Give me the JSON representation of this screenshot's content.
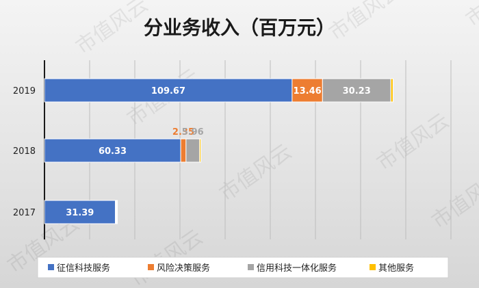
{
  "chart_data": {
    "type": "bar",
    "orientation": "horizontal",
    "stacked": true,
    "title": "分业务收入（百万元）",
    "categories": [
      "2019",
      "2018",
      "2017"
    ],
    "series": [
      {
        "name": "征信科技服务",
        "color": "#4472C4",
        "values": [
          109.67,
          60.33,
          31.39
        ]
      },
      {
        "name": "风险决策服务",
        "color": "#ED7D31",
        "values": [
          13.46,
          2.35,
          0.3
        ]
      },
      {
        "name": "信用科技一体化服务",
        "color": "#A5A5A5",
        "values": [
          30.23,
          5.96,
          0.3
        ]
      },
      {
        "name": "其他服务",
        "color": "#FFC000",
        "values": [
          1.0,
          0.6,
          0.3
        ]
      }
    ],
    "data_labels": [
      {
        "category": "2019",
        "series": "征信科技服务",
        "text": "109.67"
      },
      {
        "category": "2019",
        "series": "风险决策服务",
        "text": "13.46"
      },
      {
        "category": "2019",
        "series": "信用科技一体化服务",
        "text": "30.23"
      },
      {
        "category": "2018",
        "series": "征信科技服务",
        "text": "60.33"
      },
      {
        "category": "2018",
        "series": "风险决策服务",
        "text": "2.35"
      },
      {
        "category": "2018",
        "series": "信用科技一体化服务",
        "text": "5.96"
      },
      {
        "category": "2017",
        "series": "征信科技服务",
        "text": "31.39"
      }
    ],
    "xlim": [
      0,
      200
    ],
    "grid": true,
    "legend": "bottom",
    "watermark": "市值风云"
  }
}
